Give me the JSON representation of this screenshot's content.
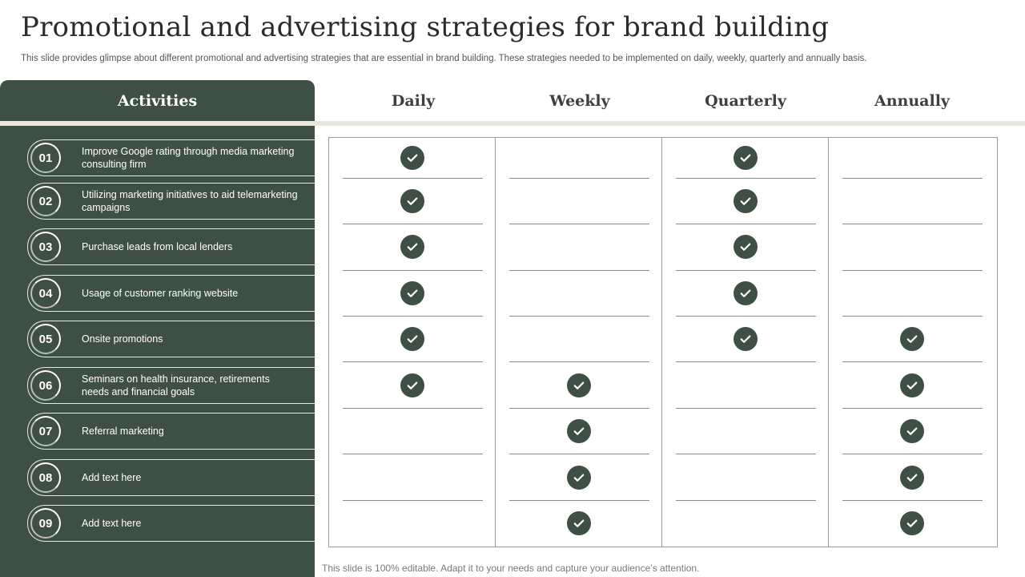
{
  "title": "Promotional and advertising strategies for brand building",
  "subtitle": "This slide provides glimpse about different promotional and advertising strategies that are essential in brand building. These strategies needed to be implemented on daily, weekly, quarterly and annually basis.",
  "activities_header": "Activities",
  "columns": [
    "Daily",
    "Weekly",
    "Quarterly",
    "Annually"
  ],
  "rows": [
    {
      "num": "01",
      "label": "Improve  Google rating through media marketing consulting firm",
      "checks": [
        true,
        false,
        true,
        false
      ]
    },
    {
      "num": "02",
      "label": "Utilizing marketing initiatives to aid telemarketing campaigns",
      "checks": [
        true,
        false,
        true,
        false
      ]
    },
    {
      "num": "03",
      "label": "Purchase leads from local lenders",
      "checks": [
        true,
        false,
        true,
        false
      ]
    },
    {
      "num": "04",
      "label": "Usage of customer ranking website",
      "checks": [
        true,
        false,
        true,
        false
      ]
    },
    {
      "num": "05",
      "label": "Onsite promotions",
      "checks": [
        true,
        false,
        true,
        true
      ]
    },
    {
      "num": "06",
      "label": "Seminars on health insurance, retirements needs and financial goals",
      "checks": [
        true,
        true,
        false,
        true
      ]
    },
    {
      "num": "07",
      "label": "Referral  marketing",
      "checks": [
        false,
        true,
        false,
        true
      ]
    },
    {
      "num": "08",
      "label": "Add text here",
      "checks": [
        false,
        true,
        false,
        true
      ]
    },
    {
      "num": "09",
      "label": "Add text here",
      "checks": [
        false,
        true,
        false,
        true
      ]
    }
  ],
  "footer": "This slide is 100% editable. Adapt it to your needs and capture your audience’s attention.",
  "colors": {
    "accent": "#3e4f46",
    "band": "#e9e6dc"
  },
  "icons": {
    "check": "check-circle-icon"
  }
}
